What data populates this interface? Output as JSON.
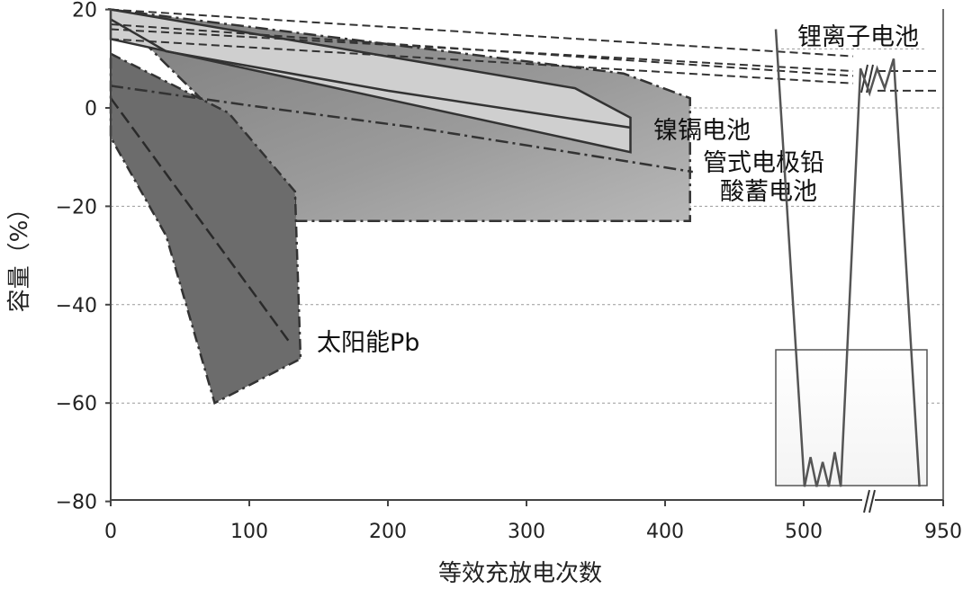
{
  "chart_data": {
    "type": "area",
    "xlabel": "等效充放电次数",
    "ylabel": "容量（%）",
    "x_ticks": [
      "0",
      "100",
      "200",
      "300",
      "400",
      "500",
      "950"
    ],
    "y_ticks": [
      "20",
      "0",
      "−20",
      "−40",
      "−60",
      "−80"
    ],
    "ylim": [
      -80,
      20
    ],
    "x_axis_break": "//",
    "grid": "dotted horizontal at -20, -40, -60",
    "legend": "none",
    "annotations": {
      "li_ion": "锂离子电池",
      "nicd": "镍镉电池",
      "tubular_1": "管式电极铅",
      "tubular_2": "酸蓄电池",
      "solar_pb": "太阳能Pb"
    },
    "series": [
      {
        "name": "锂离子电池",
        "lines": [
          [
            [
              0,
              20
            ],
            [
              530,
              10.5
            ]
          ],
          [
            [
              0,
              16
            ],
            [
              530,
              7.5
            ]
          ],
          [
            [
              0,
              14
            ],
            [
              530,
              5
            ]
          ],
          [
            [
              0,
              17
            ],
            [
              530,
              6.5
            ]
          ]
        ],
        "lines_after_break": [
          [
            [
              560,
              7.5
            ],
            [
              950,
              7.5
            ]
          ],
          [
            [
              560,
              3.5
            ],
            [
              950,
              3.5
            ]
          ]
        ]
      },
      {
        "name": "镍镉电池",
        "outline": [
          [
            0,
            20
          ],
          [
            335,
            4
          ],
          [
            375,
            -2
          ],
          [
            375,
            -9
          ],
          [
            0,
            14
          ]
        ],
        "curve": [
          [
            0,
            18
          ],
          [
            40,
            11.5
          ],
          [
            200,
            3.5
          ],
          [
            375,
            -4
          ]
        ]
      },
      {
        "name": "管式电极铅酸蓄电池",
        "outline": [
          [
            0,
            20
          ],
          [
            370,
            7
          ],
          [
            418,
            2
          ],
          [
            418,
            -23
          ],
          [
            133,
            -23
          ],
          [
            133,
            -17
          ],
          [
            0,
            20
          ]
        ],
        "median": [
          [
            0,
            4.5
          ],
          [
            100,
            0.5
          ],
          [
            220,
            -4
          ],
          [
            420,
            -13
          ]
        ]
      },
      {
        "name": "太阳能Pb",
        "outline": [
          [
            0,
            11
          ],
          [
            85,
            -1
          ],
          [
            133,
            -17
          ],
          [
            137,
            -51
          ],
          [
            75,
            -60
          ],
          [
            40,
            -26
          ],
          [
            0,
            -6
          ]
        ],
        "median": [
          [
            0,
            2
          ],
          [
            130,
            -48
          ]
        ]
      }
    ],
    "inset": {
      "y": [
        16,
        -77,
        -71,
        -77,
        -72,
        -77,
        -70,
        -77,
        8,
        3,
        8,
        4,
        10,
        -77
      ],
      "reference_y": 12
    }
  }
}
